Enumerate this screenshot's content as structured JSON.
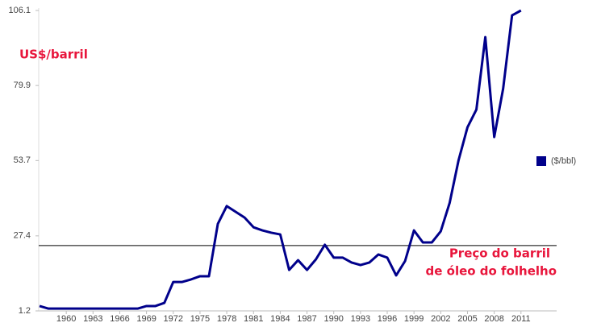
{
  "chart_data": {
    "type": "line",
    "x": [
      1957,
      1958,
      1959,
      1960,
      1961,
      1962,
      1963,
      1964,
      1965,
      1966,
      1967,
      1968,
      1969,
      1970,
      1971,
      1972,
      1973,
      1974,
      1975,
      1976,
      1977,
      1978,
      1979,
      1980,
      1981,
      1982,
      1983,
      1984,
      1985,
      1986,
      1987,
      1988,
      1989,
      1990,
      1991,
      1992,
      1993,
      1994,
      1995,
      1996,
      1997,
      1998,
      1999,
      2000,
      2001,
      2002,
      2003,
      2004,
      2005,
      2006,
      2007,
      2008,
      2009,
      2010,
      2011
    ],
    "series": [
      {
        "name": "($/bbl)",
        "color": "#00008b",
        "values": [
          2.9,
          2.0,
          2.0,
          2.0,
          2.0,
          2.0,
          2.0,
          2.0,
          2.0,
          2.0,
          2.0,
          2.0,
          2.9,
          2.9,
          4.0,
          11.3,
          11.3,
          12.2,
          13.3,
          13.3,
          31.6,
          37.8,
          35.8,
          33.8,
          30.4,
          29.3,
          28.5,
          27.9,
          15.5,
          18.9,
          15.5,
          19.2,
          24.3,
          19.8,
          19.8,
          18.1,
          17.2,
          18.1,
          20.9,
          19.8,
          13.6,
          18.6,
          29.3,
          25.1,
          25.1,
          29.0,
          38.9,
          53.8,
          65.3,
          71.5,
          96.8,
          61.9,
          78.8,
          104.4,
          106.1
        ]
      }
    ],
    "xlim": [
      1957,
      2015
    ],
    "xticks": [
      1960,
      1963,
      1966,
      1969,
      1972,
      1975,
      1978,
      1981,
      1984,
      1987,
      1990,
      1993,
      1996,
      1999,
      2002,
      2005,
      2008,
      2011
    ],
    "ylim": [
      1.2,
      106.1
    ],
    "yticks": [
      1.2,
      27.4,
      53.7,
      79.9,
      106.1
    ],
    "reference_line": 24.0,
    "y_annotation": "US$/barril",
    "line_annotation": [
      "Preço do barril",
      "de óleo do folhelho"
    ],
    "annotation_color": "#e8163c",
    "legend": "right"
  }
}
